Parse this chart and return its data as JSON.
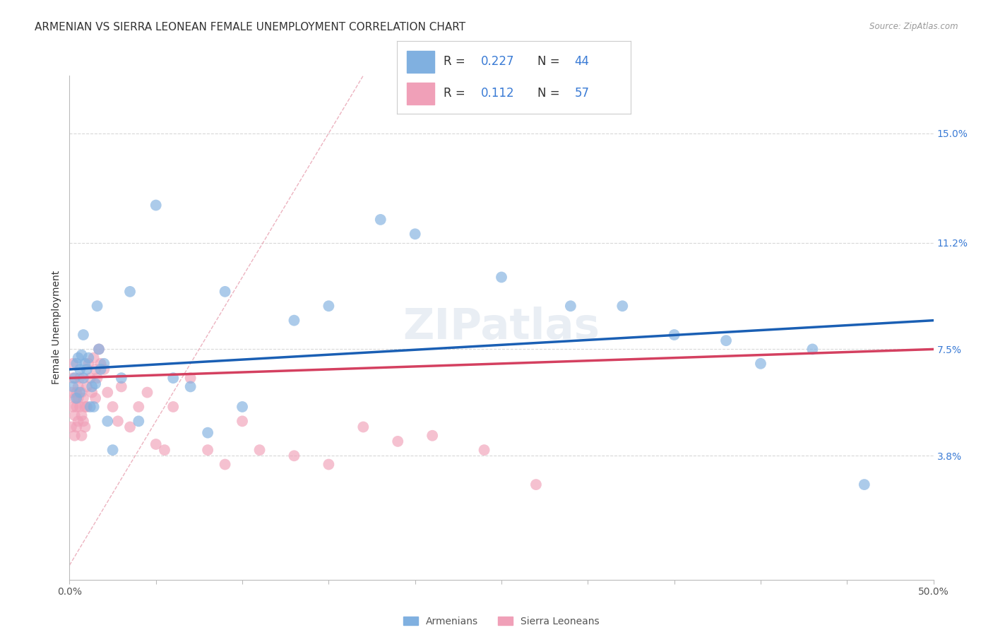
{
  "title": "ARMENIAN VS SIERRA LEONEAN FEMALE UNEMPLOYMENT CORRELATION CHART",
  "source": "Source: ZipAtlas.com",
  "ylabel": "Female Unemployment",
  "yticks": [
    0.038,
    0.075,
    0.112,
    0.15
  ],
  "ytick_labels": [
    "3.8%",
    "7.5%",
    "11.2%",
    "15.0%"
  ],
  "xlim": [
    0.0,
    0.5
  ],
  "ylim": [
    -0.005,
    0.17
  ],
  "xtick_positions": [
    0.0,
    0.05,
    0.1,
    0.15,
    0.2,
    0.25,
    0.3,
    0.35,
    0.4,
    0.45,
    0.5
  ],
  "legend_R_arm": "0.227",
  "legend_N_arm": "44",
  "legend_R_sier": "0.112",
  "legend_N_sier": "57",
  "armenian_x": [
    0.002,
    0.003,
    0.004,
    0.004,
    0.005,
    0.006,
    0.006,
    0.007,
    0.008,
    0.008,
    0.009,
    0.01,
    0.011,
    0.012,
    0.013,
    0.014,
    0.015,
    0.016,
    0.017,
    0.018,
    0.02,
    0.022,
    0.025,
    0.03,
    0.035,
    0.04,
    0.05,
    0.06,
    0.07,
    0.08,
    0.09,
    0.1,
    0.13,
    0.15,
    0.18,
    0.2,
    0.25,
    0.29,
    0.32,
    0.35,
    0.38,
    0.4,
    0.43,
    0.46
  ],
  "armenian_y": [
    0.062,
    0.065,
    0.058,
    0.07,
    0.072,
    0.06,
    0.068,
    0.073,
    0.065,
    0.08,
    0.07,
    0.068,
    0.072,
    0.055,
    0.062,
    0.055,
    0.063,
    0.09,
    0.075,
    0.068,
    0.07,
    0.05,
    0.04,
    0.065,
    0.095,
    0.05,
    0.125,
    0.065,
    0.062,
    0.046,
    0.095,
    0.055,
    0.085,
    0.09,
    0.12,
    0.115,
    0.1,
    0.09,
    0.09,
    0.08,
    0.078,
    0.07,
    0.075,
    0.028
  ],
  "sierra_x": [
    0.001,
    0.001,
    0.002,
    0.002,
    0.002,
    0.003,
    0.003,
    0.003,
    0.004,
    0.004,
    0.004,
    0.005,
    0.005,
    0.005,
    0.006,
    0.006,
    0.007,
    0.007,
    0.007,
    0.008,
    0.008,
    0.009,
    0.009,
    0.01,
    0.01,
    0.011,
    0.012,
    0.013,
    0.014,
    0.015,
    0.015,
    0.016,
    0.017,
    0.018,
    0.02,
    0.022,
    0.025,
    0.028,
    0.03,
    0.035,
    0.04,
    0.045,
    0.05,
    0.055,
    0.06,
    0.07,
    0.08,
    0.09,
    0.1,
    0.11,
    0.13,
    0.15,
    0.17,
    0.19,
    0.21,
    0.24,
    0.27
  ],
  "sierra_y": [
    0.06,
    0.048,
    0.065,
    0.07,
    0.055,
    0.058,
    0.052,
    0.045,
    0.06,
    0.055,
    0.048,
    0.062,
    0.058,
    0.05,
    0.065,
    0.055,
    0.06,
    0.052,
    0.045,
    0.058,
    0.05,
    0.055,
    0.048,
    0.062,
    0.055,
    0.07,
    0.065,
    0.06,
    0.072,
    0.068,
    0.058,
    0.065,
    0.075,
    0.07,
    0.068,
    0.06,
    0.055,
    0.05,
    0.062,
    0.048,
    0.055,
    0.06,
    0.042,
    0.04,
    0.055,
    0.065,
    0.04,
    0.035,
    0.05,
    0.04,
    0.038,
    0.035,
    0.048,
    0.043,
    0.045,
    0.04,
    0.028
  ],
  "blue_line_color": "#1a5fb4",
  "pink_line_color": "#d44060",
  "gray_diag_color": "#c0a8b0",
  "scatter_blue": "#80b0e0",
  "scatter_pink": "#f0a0b8",
  "background_color": "#ffffff",
  "grid_color": "#d8d8d8",
  "title_fontsize": 11,
  "axis_fontsize": 9,
  "watermark": "ZIPatlas"
}
